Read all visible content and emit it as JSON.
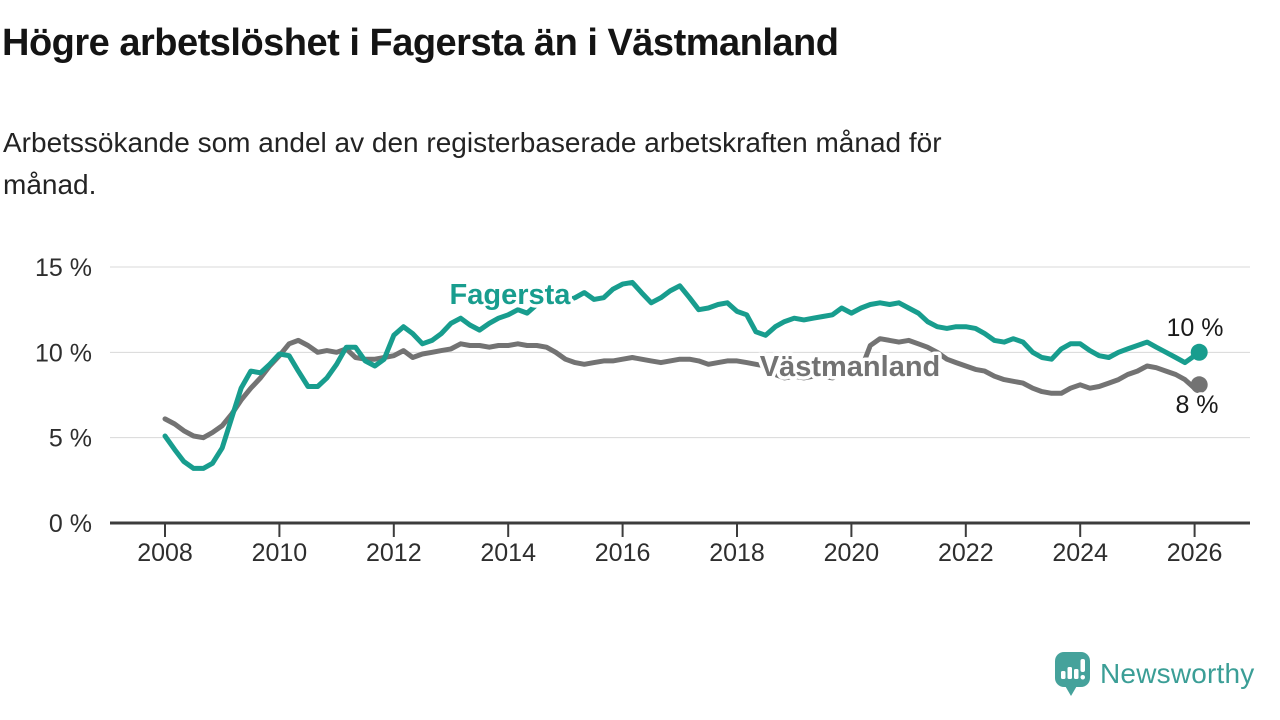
{
  "header": {
    "title": "Högre arbetslöshet i Fagersta än i Västmanland",
    "subtitle_line1": "Arbetssökande som andel av den registerbaserade arbetskraften månad för",
    "subtitle_line2": "månad."
  },
  "chart_data": {
    "type": "line",
    "title": "Högre arbetslöshet i Fagersta än i Västmanland",
    "subtitle": "Arbetssökande som andel av den registerbaserade arbetskraften månad för månad.",
    "grid": "horizontal",
    "legend_position": "inline-labels",
    "x_axis": {
      "ticks": [
        2008,
        2010,
        2012,
        2014,
        2016,
        2018,
        2020,
        2022,
        2024,
        2026
      ],
      "range": [
        2007.0,
        2026.9
      ]
    },
    "y_axis": {
      "ticks": [
        0,
        5,
        10,
        15
      ],
      "tick_labels": [
        "0 %",
        "5 %",
        "10 %",
        "15 %"
      ],
      "range": [
        0,
        15.7
      ],
      "unit": "%"
    },
    "x": [
      2008.0,
      2008.17,
      2008.33,
      2008.5,
      2008.67,
      2008.83,
      2009.0,
      2009.17,
      2009.33,
      2009.5,
      2009.67,
      2009.83,
      2010.0,
      2010.17,
      2010.33,
      2010.5,
      2010.67,
      2010.83,
      2011.0,
      2011.17,
      2011.33,
      2011.5,
      2011.67,
      2011.83,
      2012.0,
      2012.17,
      2012.33,
      2012.5,
      2012.67,
      2012.83,
      2013.0,
      2013.17,
      2013.33,
      2013.5,
      2013.67,
      2013.83,
      2014.0,
      2014.17,
      2014.33,
      2014.5,
      2014.67,
      2014.83,
      2015.0,
      2015.17,
      2015.33,
      2015.5,
      2015.67,
      2015.83,
      2016.0,
      2016.17,
      2016.33,
      2016.5,
      2016.67,
      2016.83,
      2017.0,
      2017.17,
      2017.33,
      2017.5,
      2017.67,
      2017.83,
      2018.0,
      2018.17,
      2018.33,
      2018.5,
      2018.67,
      2018.83,
      2019.0,
      2019.17,
      2019.33,
      2019.5,
      2019.67,
      2019.83,
      2020.0,
      2020.17,
      2020.33,
      2020.5,
      2020.67,
      2020.83,
      2021.0,
      2021.17,
      2021.33,
      2021.5,
      2021.67,
      2021.83,
      2022.0,
      2022.17,
      2022.33,
      2022.5,
      2022.67,
      2022.83,
      2023.0,
      2023.17,
      2023.33,
      2023.5,
      2023.67,
      2023.83,
      2024.0,
      2024.17,
      2024.33,
      2024.5,
      2024.67,
      2024.83,
      2025.0,
      2025.17,
      2025.33,
      2025.5,
      2025.67,
      2025.83,
      2026.0,
      2026.08
    ],
    "series": [
      {
        "name": "Fagersta",
        "color": "#189d8e",
        "end_label": "10 %",
        "end_value": 10,
        "values": [
          5.1,
          4.3,
          3.6,
          3.2,
          3.2,
          3.5,
          4.4,
          6.2,
          7.9,
          8.9,
          8.8,
          9.3,
          9.9,
          9.8,
          8.9,
          8.0,
          8.0,
          8.5,
          9.3,
          10.3,
          10.3,
          9.5,
          9.2,
          9.6,
          11.0,
          11.5,
          11.1,
          10.5,
          10.7,
          11.1,
          11.7,
          12.0,
          11.6,
          11.3,
          11.7,
          12.0,
          12.2,
          12.5,
          12.3,
          12.8,
          13.1,
          12.9,
          13.0,
          13.2,
          13.5,
          13.1,
          13.2,
          13.7,
          14.0,
          14.1,
          13.5,
          12.9,
          13.2,
          13.6,
          13.9,
          13.2,
          12.5,
          12.6,
          12.8,
          12.9,
          12.4,
          12.2,
          11.2,
          11.0,
          11.5,
          11.8,
          12.0,
          11.9,
          12.0,
          12.1,
          12.2,
          12.6,
          12.3,
          12.6,
          12.8,
          12.9,
          12.8,
          12.9,
          12.6,
          12.3,
          11.8,
          11.5,
          11.4,
          11.5,
          11.5,
          11.4,
          11.1,
          10.7,
          10.6,
          10.8,
          10.6,
          10.0,
          9.7,
          9.6,
          10.2,
          10.5,
          10.5,
          10.1,
          9.8,
          9.7,
          10.0,
          10.2,
          10.4,
          10.6,
          10.3,
          10.0,
          9.7,
          9.4,
          9.8,
          10.0
        ]
      },
      {
        "name": "Västmanland",
        "color": "#737373",
        "end_label": "8 %",
        "end_value": 8,
        "values": [
          6.1,
          5.8,
          5.4,
          5.1,
          5.0,
          5.3,
          5.7,
          6.4,
          7.2,
          7.9,
          8.5,
          9.2,
          9.8,
          10.5,
          10.7,
          10.4,
          10.0,
          10.1,
          10.0,
          10.2,
          9.7,
          9.6,
          9.6,
          9.7,
          9.8,
          10.1,
          9.7,
          9.9,
          10.0,
          10.1,
          10.2,
          10.5,
          10.4,
          10.4,
          10.3,
          10.4,
          10.4,
          10.5,
          10.4,
          10.4,
          10.3,
          10.0,
          9.6,
          9.4,
          9.3,
          9.4,
          9.5,
          9.5,
          9.6,
          9.7,
          9.6,
          9.5,
          9.4,
          9.5,
          9.6,
          9.6,
          9.5,
          9.3,
          9.4,
          9.5,
          9.5,
          9.4,
          9.3,
          9.2,
          8.7,
          8.5,
          8.6,
          8.5,
          8.6,
          8.6,
          8.5,
          8.7,
          8.6,
          9.0,
          10.4,
          10.8,
          10.7,
          10.6,
          10.7,
          10.5,
          10.3,
          10.0,
          9.6,
          9.4,
          9.2,
          9.0,
          8.9,
          8.6,
          8.4,
          8.3,
          8.2,
          7.9,
          7.7,
          7.6,
          7.6,
          7.9,
          8.1,
          7.9,
          8.0,
          8.2,
          8.4,
          8.7,
          8.9,
          9.2,
          9.1,
          8.9,
          8.7,
          8.4,
          7.9,
          8.1
        ]
      }
    ]
  },
  "branding": {
    "logo_text": "Newsworthy",
    "logo_color": "#3b9e96",
    "logo_icon": "speech-bubble-bar-chart-exclamation",
    "icon_color": "#45a29b"
  }
}
